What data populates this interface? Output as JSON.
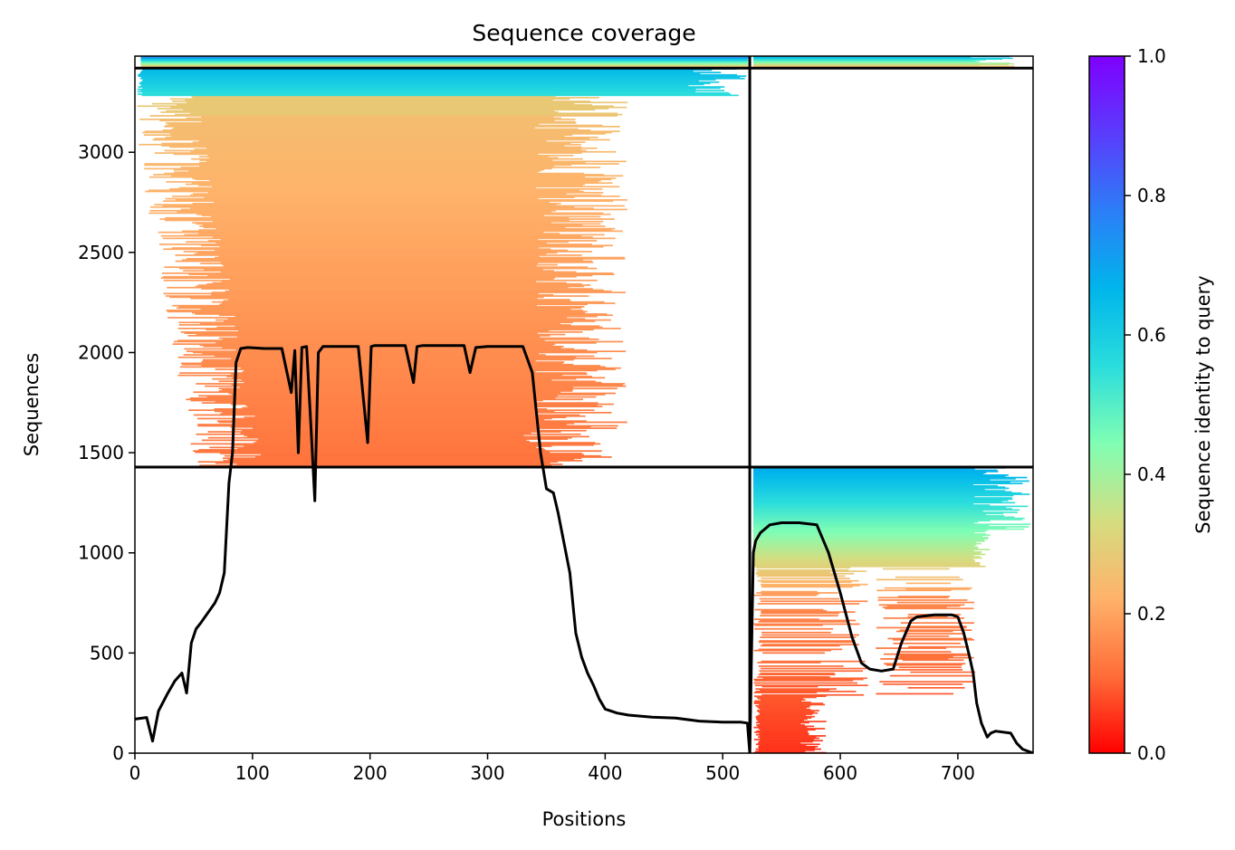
{
  "chart_data": {
    "type": "heatmap",
    "title": "Sequence coverage",
    "xlabel": "Positions",
    "ylabel": "Sequences",
    "xlim": [
      0,
      764
    ],
    "ylim": [
      0,
      3480
    ],
    "x_ticks": [
      0,
      100,
      200,
      300,
      400,
      500,
      600,
      700
    ],
    "y_ticks": [
      0,
      500,
      1000,
      1500,
      2000,
      2500,
      3000
    ],
    "colorbar": {
      "label": "Sequence identity to query",
      "colormap": "rainbow_r",
      "range": [
        0,
        1
      ],
      "ticks": [
        "0.0",
        "0.2",
        "0.4",
        "0.6",
        "0.8",
        "1.0"
      ],
      "stops": [
        "#ff0000",
        "#ff6d38",
        "#ffb26a",
        "#d4dd80",
        "#80feb3",
        "#2adddd",
        "#00b5eb",
        "#2c7ef7",
        "#5a3cfc",
        "#7f00ff"
      ]
    },
    "chain_boundaries": {
      "positions": [
        523
      ],
      "sequence_rows": [
        1428,
        3420
      ]
    },
    "coverage_line": {
      "name": "",
      "x": [
        0,
        10,
        15,
        20,
        28,
        34,
        40,
        44,
        48,
        52,
        56,
        62,
        68,
        72,
        76,
        80,
        83,
        86,
        90,
        96,
        110,
        125,
        133,
        136,
        139,
        142,
        146,
        150,
        153,
        156,
        160,
        175,
        190,
        198,
        201,
        204,
        208,
        215,
        230,
        237,
        240,
        245,
        260,
        280,
        285,
        290,
        300,
        315,
        330,
        338,
        345,
        350,
        356,
        360,
        370,
        375,
        380,
        385,
        390,
        395,
        400,
        410,
        420,
        440,
        460,
        480,
        500,
        515,
        521,
        523,
        526,
        528,
        532,
        540,
        550,
        565,
        580,
        590,
        600,
        610,
        618,
        625,
        635,
        645,
        652,
        660,
        665,
        680,
        695,
        700,
        705,
        710,
        713,
        716,
        720,
        725,
        728,
        732,
        745,
        750,
        755,
        764
      ],
      "y": [
        170,
        178,
        60,
        210,
        300,
        360,
        400,
        300,
        550,
        620,
        650,
        700,
        750,
        800,
        900,
        1350,
        1500,
        1950,
        2020,
        2025,
        2020,
        2020,
        1800,
        2010,
        1500,
        2025,
        2030,
        1600,
        1260,
        2000,
        2030,
        2030,
        2030,
        1550,
        2030,
        2035,
        2035,
        2035,
        2035,
        1850,
        2030,
        2035,
        2035,
        2035,
        1900,
        2025,
        2030,
        2030,
        2030,
        1900,
        1500,
        1320,
        1300,
        1200,
        900,
        600,
        480,
        400,
        340,
        270,
        220,
        200,
        190,
        180,
        175,
        160,
        155,
        155,
        150,
        0,
        1000,
        1060,
        1100,
        1140,
        1150,
        1150,
        1140,
        1000,
        800,
        580,
        450,
        420,
        410,
        420,
        550,
        660,
        680,
        690,
        690,
        680,
        600,
        480,
        400,
        250,
        150,
        80,
        100,
        110,
        100,
        50,
        20,
        0
      ]
    }
  }
}
